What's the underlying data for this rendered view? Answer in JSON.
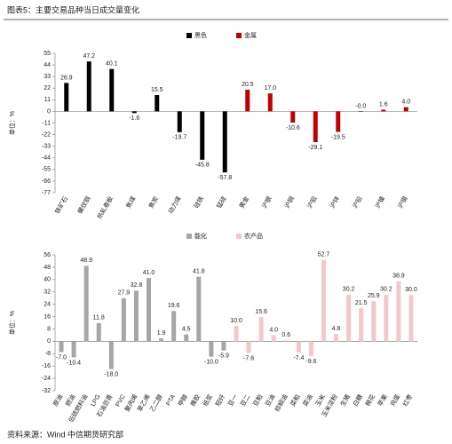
{
  "title": "图表5：主要交易品种当日成交量变化",
  "source": "资料来源：Wind 中信期货研究部",
  "chart_data": [
    {
      "type": "bar",
      "ylabel": "单位：%",
      "categories": [
        "铁矿石",
        "螺纹钢",
        "热轧卷板",
        "焦煤",
        "焦炭",
        "动力煤",
        "硅铁",
        "锰硅",
        "黄金",
        "沪银",
        "沪铜",
        "沪铝",
        "沪锌",
        "沪铅",
        "沪镍",
        "沪锡"
      ],
      "series": [
        {
          "name": "黑色",
          "color": "#000000",
          "values": [
            26.9,
            47.2,
            40.1,
            -1.6,
            15.5,
            -19.7,
            -45.8,
            -57.8,
            null,
            null,
            null,
            null,
            null,
            null,
            null,
            null
          ],
          "value_labels": [
            "26.9",
            "47.2",
            "40.1",
            "-1.6",
            "15.5",
            "-19.7",
            "-45.8",
            "-57.8",
            null,
            null,
            null,
            null,
            null,
            null,
            null,
            null
          ]
        },
        {
          "name": "金属",
          "color": "#c00000",
          "values": [
            null,
            null,
            null,
            null,
            null,
            null,
            null,
            null,
            20.5,
            17.0,
            -10.6,
            -29.1,
            -19.5,
            0,
            1.6,
            4.0
          ],
          "value_labels": [
            null,
            null,
            null,
            null,
            null,
            null,
            null,
            null,
            "20.5",
            "17.0",
            "-10.6",
            "-29.1",
            "-19.5",
            "-0.0",
            "1.6",
            "4.0"
          ]
        }
      ],
      "ylim": [
        -77,
        55
      ],
      "yticks": [
        55,
        44,
        33,
        22,
        11,
        0,
        -11,
        -22,
        -33,
        -44,
        -55,
        -66,
        -77
      ]
    },
    {
      "type": "bar",
      "ylabel": "单位：%",
      "categories": [
        "原油",
        "燃油",
        "低硫燃料油",
        "LPG",
        "石油沥青",
        "PVC",
        "聚丙烯",
        "苯乙烯",
        "乙二醇",
        "PTA",
        "甲醇",
        "橡胶",
        "纸浆",
        "短纤",
        "豆一",
        "豆二",
        "豆粕",
        "豆油",
        "棕榈油",
        "菜粕",
        "菜油",
        "玉米",
        "玉米淀粉",
        "生猪",
        "白糖",
        "棉花",
        "苹果",
        "鸡蛋",
        "红枣"
      ],
      "series": [
        {
          "name": "能化",
          "color": "#a6a6a6",
          "values": [
            -7.0,
            -10.4,
            48.9,
            11.8,
            -18.0,
            27.9,
            32.8,
            41.0,
            1.9,
            19.6,
            4.5,
            41.8,
            -10.0,
            -5.9,
            null,
            null,
            null,
            null,
            null,
            null,
            null,
            null,
            null,
            null,
            null,
            null,
            null,
            null,
            null
          ],
          "value_labels": [
            "-7.0",
            "-10.4",
            "48.9",
            "11.8",
            "-18.0",
            "27.9",
            "32.8",
            "41.0",
            "1.9",
            "19.6",
            "4.5",
            "41.8",
            "-10.0",
            "-5.9",
            null,
            null,
            null,
            null,
            null,
            null,
            null,
            null,
            null,
            null,
            null,
            null,
            null,
            null,
            null
          ]
        },
        {
          "name": "农产品",
          "color": "#f4c7c9",
          "values": [
            null,
            null,
            null,
            null,
            null,
            null,
            null,
            null,
            null,
            null,
            null,
            null,
            null,
            null,
            10.0,
            -7.6,
            15.6,
            4.0,
            0.6,
            -7.4,
            -9.6,
            52.7,
            4.8,
            30.2,
            21.5,
            25.9,
            30.2,
            38.9,
            30.0
          ],
          "value_labels": [
            null,
            null,
            null,
            null,
            null,
            null,
            null,
            null,
            null,
            null,
            null,
            null,
            null,
            null,
            "10.0",
            "-7.6",
            "15.6",
            "4.0",
            "0.6",
            "-7.4",
            "-9.6",
            "52.7",
            "4.8",
            "30.2",
            "21.5",
            "25.9",
            "30.2",
            "38.9",
            "30.0"
          ]
        }
      ],
      "ylim": [
        -32,
        56
      ],
      "yticks": [
        56,
        48,
        40,
        32,
        24,
        16,
        8,
        0,
        -8,
        -16,
        -24,
        -32
      ]
    }
  ]
}
